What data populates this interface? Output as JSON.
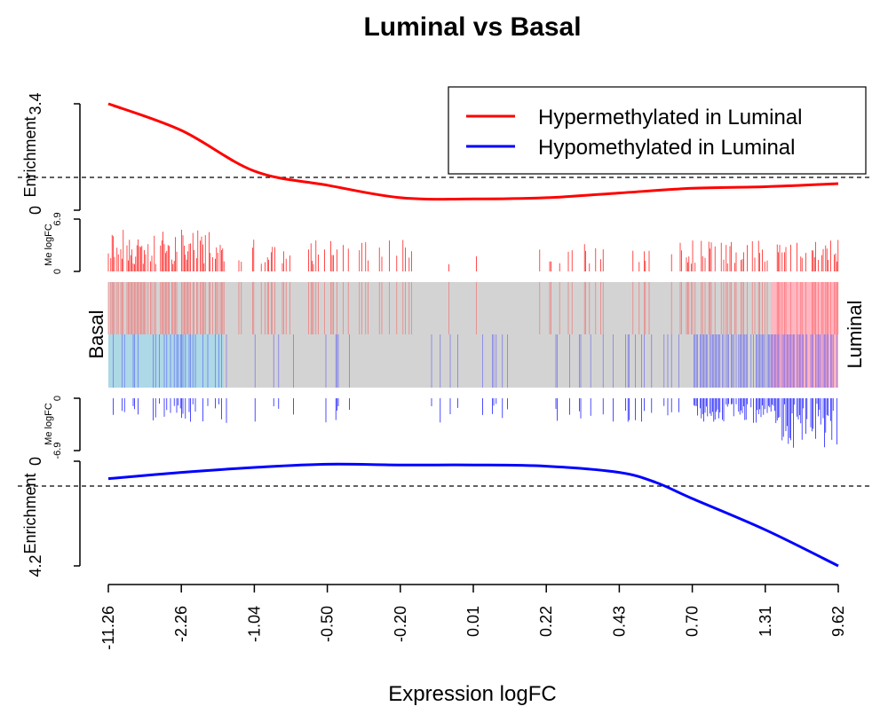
{
  "chart_data": {
    "type": "line",
    "title": "Luminal vs Basal",
    "xlabel": "Expression logFC",
    "x_tick_labels": [
      "-11.26",
      "-2.26",
      "-1.04",
      "-0.50",
      "-0.20",
      "0.01",
      "0.22",
      "0.43",
      "0.70",
      "1.31",
      "9.62"
    ],
    "legend": {
      "placement": "top-right",
      "entries": [
        {
          "label": "Hypermethylated in Luminal",
          "color": "#ff0000"
        },
        {
          "label": "Hypomethylated in Luminal",
          "color": "#0000ff"
        }
      ]
    },
    "panels": {
      "top_enrichment": {
        "ylabel": "Enrichment",
        "y_tick_labels": [
          "0",
          "3.4"
        ],
        "ylim": [
          0,
          3.4
        ],
        "baseline": 1.0,
        "series": {
          "name": "Hypermethylated in Luminal",
          "color": "#ff0000",
          "rank_fraction": [
            0,
            0.1,
            0.2,
            0.3,
            0.4,
            0.5,
            0.6,
            0.7,
            0.8,
            0.9,
            1.0
          ],
          "values": [
            3.4,
            2.55,
            1.25,
            0.8,
            0.4,
            0.36,
            0.4,
            0.55,
            0.7,
            0.75,
            0.85
          ]
        }
      },
      "top_me_logfc": {
        "ylabel": "Me logFC",
        "y_tick_labels": [
          "0",
          "6.9"
        ],
        "ylim": [
          0,
          6.9
        ]
      },
      "barcode": {
        "left_label": "Basal",
        "right_label": "Luminal",
        "colors": {
          "background": "#d3d3d3",
          "up_region": "#ffb6c1",
          "down_region": "#add8e6",
          "up_bar": "#ff0000",
          "down_bar": "#0000ff"
        }
      },
      "bottom_me_logfc": {
        "ylabel": "Me logFC",
        "y_tick_labels": [
          "0",
          "-6.9"
        ],
        "ylim": [
          -6.9,
          0
        ]
      },
      "bottom_enrichment": {
        "ylabel": "Enrichment",
        "y_tick_labels": [
          "0",
          "4.2"
        ],
        "ylim": [
          0,
          4.2
        ],
        "baseline": 1.0,
        "series": {
          "name": "Hypomethylated in Luminal",
          "color": "#0000ff",
          "rank_fraction": [
            0,
            0.1,
            0.2,
            0.3,
            0.4,
            0.5,
            0.6,
            0.7,
            0.75,
            0.8,
            0.9,
            1.0
          ],
          "values": [
            0.7,
            0.45,
            0.25,
            0.12,
            0.15,
            0.15,
            0.2,
            0.45,
            0.85,
            1.5,
            2.75,
            4.2
          ]
        }
      }
    }
  }
}
